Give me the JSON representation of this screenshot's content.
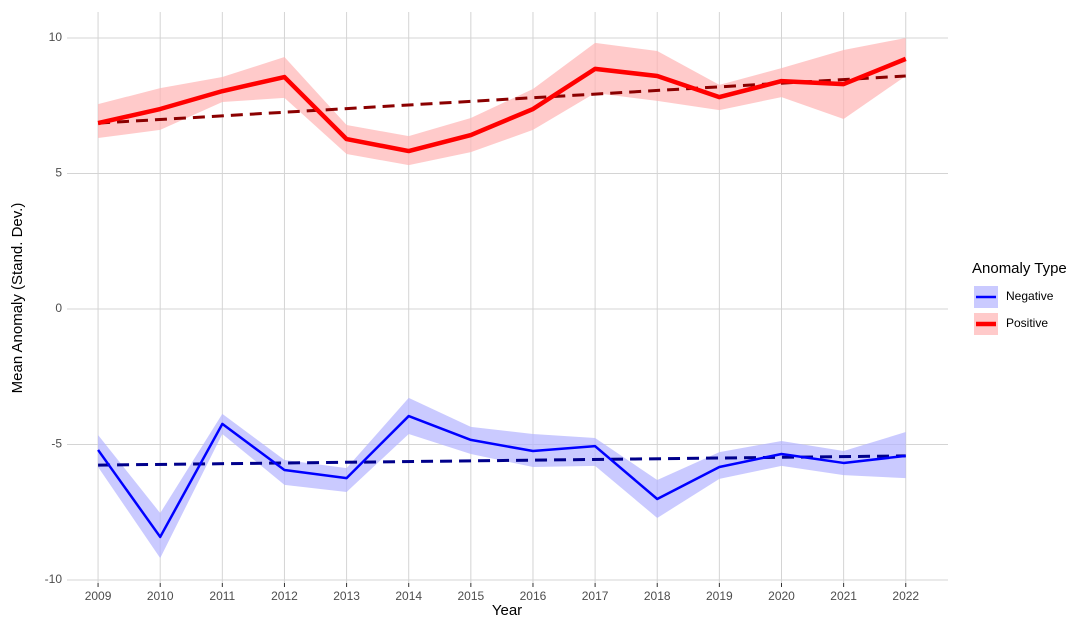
{
  "chart_data": {
    "type": "line",
    "x_label": "Year",
    "y_label": "Mean Anomaly (Stand. Dev.)",
    "x": [
      2009,
      2010,
      2011,
      2012,
      2013,
      2014,
      2015,
      2016,
      2017,
      2018,
      2019,
      2020,
      2021,
      2022
    ],
    "xlim": [
      2008.5,
      2022.68
    ],
    "xticks": [
      2009,
      2010,
      2011,
      2012,
      2013,
      2014,
      2015,
      2016,
      2017,
      2018,
      2019,
      2020,
      2021,
      2022
    ],
    "ylim": [
      -10.11,
      10.96
    ],
    "yticks": [
      -10,
      -5,
      0,
      5,
      10
    ],
    "grid": true,
    "legend_title": "Anomaly Type",
    "legend_position": "right",
    "series": [
      {
        "name": "Negative",
        "color": "#0000ff",
        "ribbon_color": "#b3b3ff",
        "values": [
          -5.2,
          -8.41,
          -4.24,
          -5.94,
          -6.24,
          -3.95,
          -4.83,
          -5.24,
          -5.06,
          -7.01,
          -5.83,
          -5.35,
          -5.68,
          -5.42
        ],
        "lower": [
          -5.83,
          -9.19,
          -4.61,
          -6.49,
          -6.75,
          -4.61,
          -5.35,
          -5.83,
          -5.79,
          -7.71,
          -6.27,
          -5.79,
          -6.13,
          -6.24
        ],
        "upper": [
          -4.65,
          -7.53,
          -3.87,
          -5.57,
          -5.87,
          -3.28,
          -4.35,
          -4.61,
          -4.76,
          -6.31,
          -5.28,
          -4.87,
          -5.24,
          -4.54
        ],
        "trend": {
          "x": [
            2009,
            2022
          ],
          "values": [
            -5.76,
            -5.42
          ],
          "color": "#00008b"
        }
      },
      {
        "name": "Positive",
        "color": "#ff0000",
        "ribbon_color": "#ffb3b3",
        "values": [
          6.86,
          7.38,
          8.04,
          8.56,
          6.27,
          5.83,
          6.42,
          7.38,
          8.86,
          8.6,
          7.82,
          8.41,
          8.3,
          9.23
        ],
        "lower": [
          6.31,
          6.61,
          7.64,
          7.79,
          5.72,
          5.31,
          5.79,
          6.61,
          7.97,
          7.68,
          7.34,
          7.82,
          7.01,
          8.6
        ],
        "upper": [
          7.56,
          8.15,
          8.56,
          9.3,
          6.79,
          6.38,
          7.05,
          8.12,
          9.82,
          9.52,
          8.27,
          8.89,
          9.56,
          10.0
        ],
        "trend": {
          "x": [
            2009,
            2022
          ],
          "values": [
            6.86,
            8.6
          ],
          "color": "#8b0000"
        }
      }
    ]
  }
}
